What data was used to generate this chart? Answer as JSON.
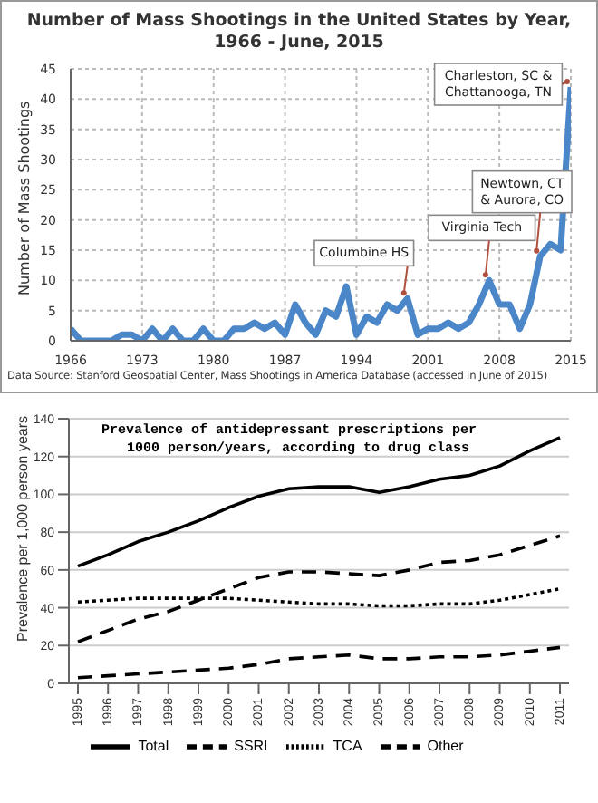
{
  "chart_data": [
    {
      "type": "line",
      "title": "Number of Mass Shootings in the United States by Year,\n1966 - June, 2015",
      "ylabel": "Number of Mass Shootings",
      "x": [
        1966,
        1967,
        1968,
        1969,
        1970,
        1971,
        1972,
        1973,
        1974,
        1975,
        1976,
        1977,
        1978,
        1979,
        1980,
        1981,
        1982,
        1983,
        1984,
        1985,
        1986,
        1987,
        1988,
        1989,
        1990,
        1991,
        1992,
        1993,
        1994,
        1995,
        1996,
        1997,
        1998,
        1999,
        2000,
        2001,
        2002,
        2003,
        2004,
        2005,
        2006,
        2007,
        2008,
        2009,
        2010,
        2011,
        2012,
        2013,
        2014,
        2015
      ],
      "series": [
        {
          "color": "#4a86c8",
          "values": [
            2,
            0,
            0,
            0,
            0,
            1,
            1,
            0,
            2,
            0,
            2,
            0,
            0,
            2,
            0,
            0,
            2,
            2,
            3,
            2,
            3,
            1,
            6,
            3,
            1,
            5,
            4,
            9,
            1,
            4,
            3,
            6,
            5,
            7,
            1,
            2,
            2,
            3,
            2,
            3,
            6,
            10,
            6,
            6,
            2,
            6,
            14,
            16,
            15,
            42
          ]
        }
      ],
      "xlim": [
        1966,
        2015
      ],
      "xticks": [
        1966,
        1973,
        1980,
        1987,
        1994,
        2001,
        2008,
        2015
      ],
      "ylim": [
        0,
        45
      ],
      "yticks": [
        0,
        5,
        10,
        15,
        20,
        25,
        30,
        35,
        40,
        45
      ],
      "grid": true,
      "marker": "none",
      "line_style": "solid",
      "annotations": [
        {
          "text": "Columbine HS",
          "x": 1999,
          "y": 7
        },
        {
          "text": "Virginia Tech",
          "x": 2007,
          "y": 10
        },
        {
          "text": "Newtown, CT\n& Aurora, CO",
          "x": 2012,
          "y": 14
        },
        {
          "text": "Charleston, SC &\nChattanooga, TN",
          "x": 2015,
          "y": 42
        },
        "Data Source: Stanford Geospatial Center, Mass Shootings in America Database (accessed in June of 2015)"
      ]
    },
    {
      "type": "line",
      "title": "Prevalence of antidepressant prescriptions per\n1000 person/years, according to drug class",
      "ylabel": "Prevalence per 1,000 person years",
      "categories": [
        "1995",
        "1996",
        "1997",
        "1998",
        "1999",
        "2000",
        "2001",
        "2002",
        "2003",
        "2004",
        "2005",
        "2006",
        "2007",
        "2008",
        "2009",
        "2010",
        "2011"
      ],
      "series": [
        {
          "name": "Total",
          "color": "#000000",
          "line_style": "solid",
          "values": [
            62,
            68,
            75,
            80,
            86,
            93,
            99,
            103,
            104,
            104,
            101,
            104,
            108,
            110,
            115,
            123,
            130
          ]
        },
        {
          "name": "SSRI",
          "color": "#000000",
          "line_style": "dashed",
          "values": [
            22,
            28,
            34,
            38,
            44,
            50,
            56,
            59,
            59,
            58,
            57,
            60,
            64,
            65,
            68,
            73,
            78
          ]
        },
        {
          "name": "TCA",
          "color": "#000000",
          "line_style": "dotted",
          "values": [
            43,
            44,
            45,
            45,
            45,
            45,
            44,
            43,
            42,
            42,
            41,
            41,
            42,
            42,
            44,
            47,
            50
          ]
        },
        {
          "name": "Other",
          "color": "#000000",
          "line_style": "dashed",
          "values": [
            3,
            4,
            5,
            6,
            7,
            8,
            10,
            13,
            14,
            15,
            13,
            13,
            14,
            14,
            15,
            17,
            19
          ]
        }
      ],
      "ylim": [
        0,
        140
      ],
      "yticks": [
        0,
        20,
        40,
        60,
        80,
        100,
        120,
        140
      ],
      "grid": "y",
      "legend": "bottom",
      "marker": "none"
    }
  ]
}
